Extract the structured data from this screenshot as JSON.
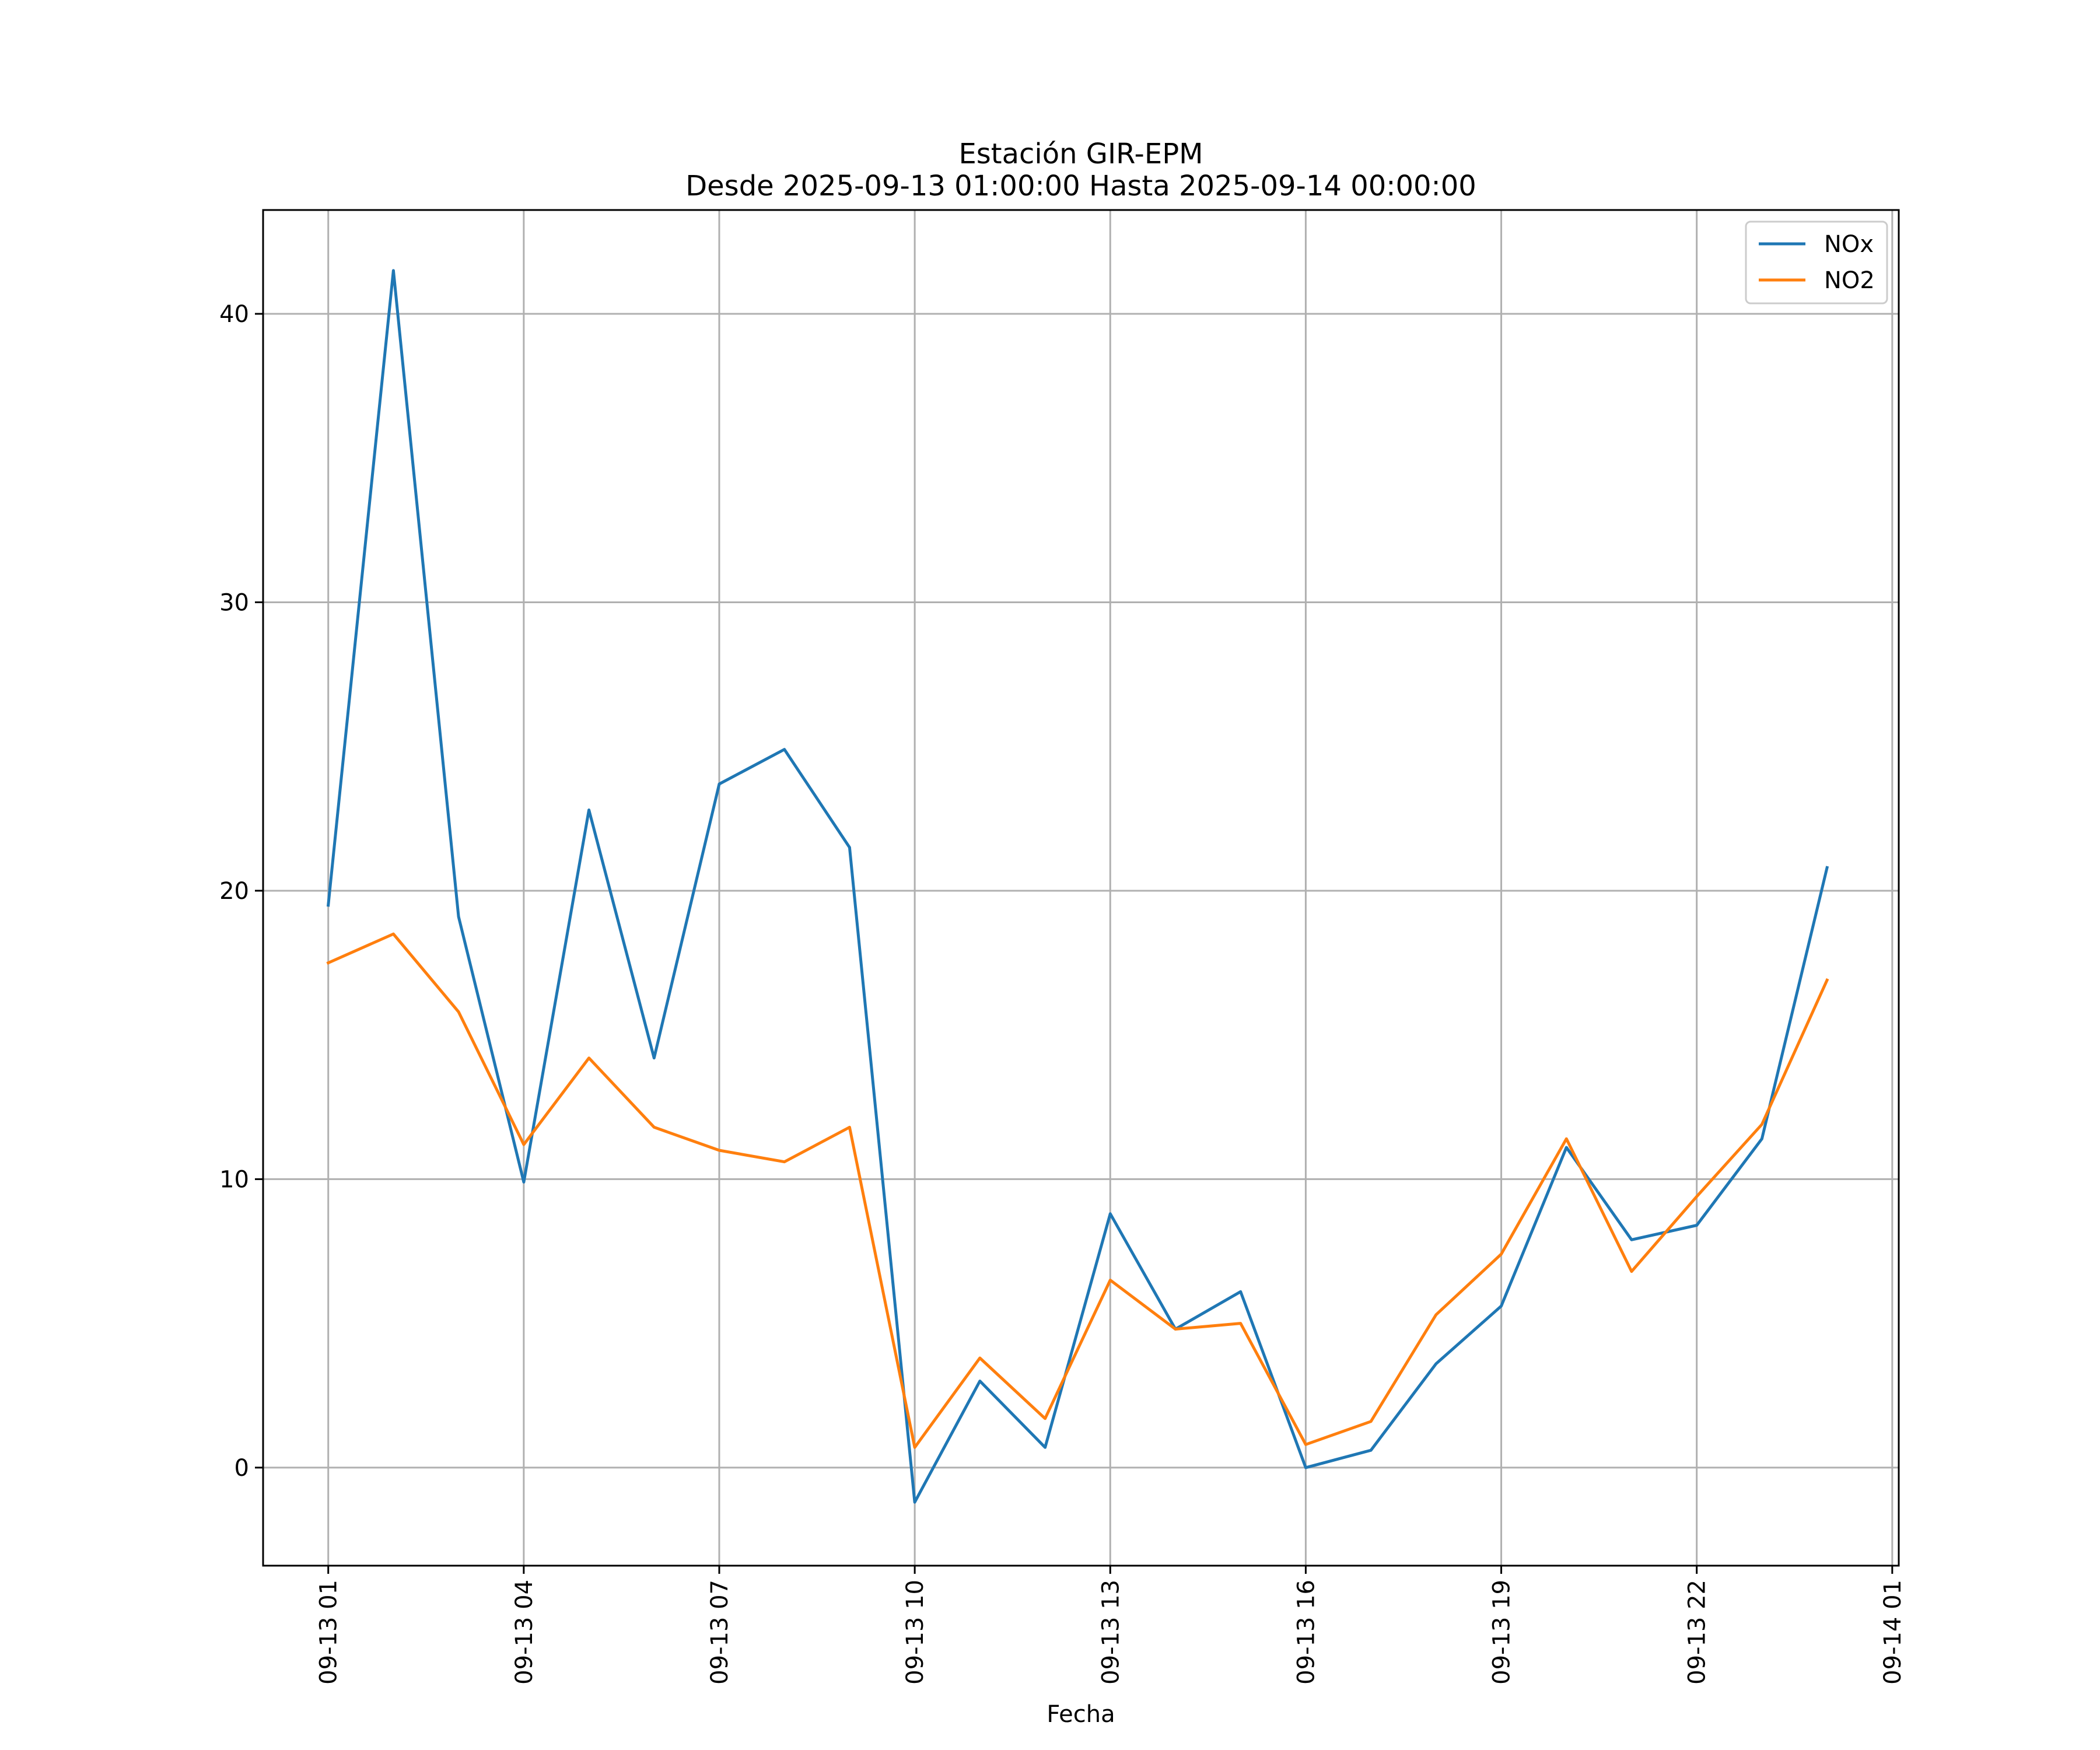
{
  "chart_data": {
    "type": "line",
    "title_line1": "Estación GIR-EPM",
    "title_line2": "Desde 2025-09-13 01:00:00 Hasta 2025-09-14 00:00:00",
    "xlabel": "Fecha",
    "ylabel": "",
    "x_hours": [
      1,
      2,
      3,
      4,
      5,
      6,
      7,
      8,
      9,
      10,
      11,
      12,
      13,
      14,
      15,
      16,
      17,
      18,
      19,
      20,
      21,
      22,
      23,
      24
    ],
    "xlim": [
      0.0,
      25.1
    ],
    "ylim": [
      -3.4,
      43.6
    ],
    "x_ticks": [
      {
        "hour": 1,
        "label": "09-13 01"
      },
      {
        "hour": 4,
        "label": "09-13 04"
      },
      {
        "hour": 7,
        "label": "09-13 07"
      },
      {
        "hour": 10,
        "label": "09-13 10"
      },
      {
        "hour": 13,
        "label": "09-13 13"
      },
      {
        "hour": 16,
        "label": "09-13 16"
      },
      {
        "hour": 19,
        "label": "09-13 19"
      },
      {
        "hour": 22,
        "label": "09-13 22"
      },
      {
        "hour": 25,
        "label": "09-14 01"
      }
    ],
    "y_ticks": [
      {
        "value": 0,
        "label": "0"
      },
      {
        "value": 10,
        "label": "10"
      },
      {
        "value": 20,
        "label": "20"
      },
      {
        "value": 30,
        "label": "30"
      },
      {
        "value": 40,
        "label": "40"
      }
    ],
    "grid": true,
    "legend_position": "upper right",
    "series": [
      {
        "name": "NOx",
        "color": "#1f77b4",
        "values": [
          19.5,
          41.5,
          19.1,
          9.9,
          22.8,
          14.2,
          23.7,
          24.9,
          21.5,
          -1.2,
          3.0,
          0.7,
          8.8,
          4.8,
          6.1,
          0.0,
          0.6,
          3.6,
          5.6,
          11.1,
          7.9,
          8.4,
          11.4,
          20.8
        ]
      },
      {
        "name": "NO2",
        "color": "#ff7f0e",
        "values": [
          17.5,
          18.5,
          15.8,
          11.2,
          14.2,
          11.8,
          11.0,
          10.6,
          11.8,
          0.7,
          3.8,
          1.7,
          6.5,
          4.8,
          5.0,
          0.8,
          1.6,
          5.3,
          7.4,
          11.4,
          6.8,
          9.4,
          11.9,
          16.9
        ]
      }
    ]
  }
}
